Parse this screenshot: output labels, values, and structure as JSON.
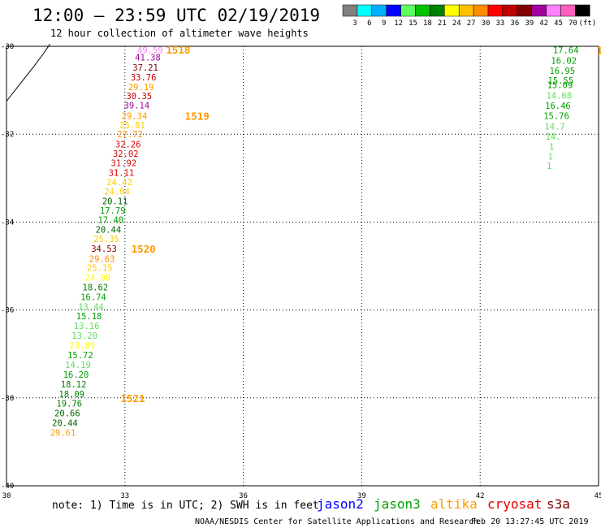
{
  "header": {
    "title": "12:00 — 23:59 UTC 02/19/2019",
    "subtitle": "12 hour collection of altimeter wave heights"
  },
  "colorbar": {
    "colors": [
      "#808080",
      "#00ffff",
      "#00b0ff",
      "#0000ff",
      "#60ff60",
      "#00c000",
      "#008000",
      "#ffff00",
      "#ffc000",
      "#ff8c00",
      "#ff0000",
      "#c00000",
      "#800000",
      "#a000a0",
      "#ff80ff",
      "#ff60c0",
      "#000000"
    ],
    "labels": [
      "3",
      "6",
      "9",
      "12",
      "15",
      "18",
      "21",
      "24",
      "27",
      "30",
      "33",
      "36",
      "39",
      "42",
      "45",
      "70",
      "(ft)"
    ]
  },
  "footer": {
    "note": "note: 1) Time is in UTC; 2) SWH is in feet",
    "satellites": [
      {
        "name": "jason2",
        "color": "#0000ff"
      },
      {
        "name": "jason3",
        "color": "#00a000"
      },
      {
        "name": "altika",
        "color": "#ff9900"
      },
      {
        "name": "cryosat",
        "color": "#e00000"
      },
      {
        "name": "s3a",
        "color": "#800000"
      }
    ],
    "credit": "NOAA/NESDIS Center for Satellite Applications and Research",
    "timestamp": "Feb 20 13:27:45 UTC 2019"
  },
  "chart_data": {
    "type": "scatter",
    "xlim": [
      30,
      45
    ],
    "ylim": [
      -40,
      -30
    ],
    "x_ticks": [
      "30",
      "33",
      "36",
      "39",
      "42",
      "45"
    ],
    "y_ticks": [
      "-30",
      "-32",
      "-34",
      "-36",
      "-38",
      "-40"
    ],
    "grid": true,
    "track": [
      {
        "lon": 33.64,
        "lat": -30.08,
        "swh": "49.59",
        "color": "#ff80ff"
      },
      {
        "lon": 33.58,
        "lat": -30.25,
        "swh": "41.38",
        "color": "#a000a0"
      },
      {
        "lon": 33.52,
        "lat": -30.48,
        "swh": "37.21",
        "color": "#800000"
      },
      {
        "lon": 33.47,
        "lat": -30.7,
        "swh": "33.76",
        "color": "#c00000"
      },
      {
        "lon": 33.41,
        "lat": -30.92,
        "swh": "29.19",
        "color": "#ff9900"
      },
      {
        "lon": 33.36,
        "lat": -31.13,
        "swh": "30.35",
        "color": "#c00000"
      },
      {
        "lon": 33.3,
        "lat": -31.34,
        "swh": "39.14",
        "color": "#a000a0"
      },
      {
        "lon": 33.24,
        "lat": -31.58,
        "swh": "29.34",
        "color": "#ff9900"
      },
      {
        "lon": 33.19,
        "lat": -31.79,
        "swh": "25.81",
        "color": "#ffcc00"
      },
      {
        "lon": 33.13,
        "lat": -32.0,
        "swh": "27.72",
        "color": "#ff8c00"
      },
      {
        "lon": 33.08,
        "lat": -32.23,
        "swh": "32.26",
        "color": "#e00000"
      },
      {
        "lon": 33.02,
        "lat": -32.44,
        "swh": "32.02",
        "color": "#e00000"
      },
      {
        "lon": 32.97,
        "lat": -32.65,
        "swh": "31.92",
        "color": "#e00000"
      },
      {
        "lon": 32.91,
        "lat": -32.87,
        "swh": "31.11",
        "color": "#e00000"
      },
      {
        "lon": 32.86,
        "lat": -33.09,
        "swh": "24.42",
        "color": "#ffcc00"
      },
      {
        "lon": 32.8,
        "lat": -33.3,
        "swh": "24.04",
        "color": "#ffcc00"
      },
      {
        "lon": 32.75,
        "lat": -33.52,
        "swh": "20.11",
        "color": "#006400"
      },
      {
        "lon": 32.69,
        "lat": -33.73,
        "swh": "17.79",
        "color": "#00a000"
      },
      {
        "lon": 32.64,
        "lat": -33.95,
        "swh": "17.40",
        "color": "#00a000"
      },
      {
        "lon": 32.58,
        "lat": -34.17,
        "swh": "20.44",
        "color": "#006400"
      },
      {
        "lon": 32.53,
        "lat": -34.38,
        "swh": "25.35",
        "color": "#ffcc00"
      },
      {
        "lon": 32.47,
        "lat": -34.6,
        "swh": "34.53",
        "color": "#800000"
      },
      {
        "lon": 32.42,
        "lat": -34.83,
        "swh": "29.63",
        "color": "#ff8c00"
      },
      {
        "lon": 32.36,
        "lat": -35.04,
        "swh": "25.15",
        "color": "#ffcc00"
      },
      {
        "lon": 32.31,
        "lat": -35.26,
        "swh": "24.00",
        "color": "#ffff00"
      },
      {
        "lon": 32.25,
        "lat": -35.48,
        "swh": "18.62",
        "color": "#008000"
      },
      {
        "lon": 32.2,
        "lat": -35.7,
        "swh": "16.74",
        "color": "#00a000"
      },
      {
        "lon": 32.14,
        "lat": -35.92,
        "swh": "13.44",
        "color": "#60e060"
      },
      {
        "lon": 32.09,
        "lat": -36.14,
        "swh": "15.18",
        "color": "#00a000"
      },
      {
        "lon": 32.03,
        "lat": -36.36,
        "swh": "13.16",
        "color": "#60e060"
      },
      {
        "lon": 31.98,
        "lat": -36.58,
        "swh": "13.20",
        "color": "#60e060"
      },
      {
        "lon": 31.92,
        "lat": -36.8,
        "swh": "23.89",
        "color": "#ffff00"
      },
      {
        "lon": 31.87,
        "lat": -37.02,
        "swh": "15.72",
        "color": "#00a000"
      },
      {
        "lon": 31.81,
        "lat": -37.25,
        "swh": "14.19",
        "color": "#60e060"
      },
      {
        "lon": 31.76,
        "lat": -37.47,
        "swh": "16.20",
        "color": "#00a000"
      },
      {
        "lon": 31.7,
        "lat": -37.69,
        "swh": "18.12",
        "color": "#008000"
      },
      {
        "lon": 31.65,
        "lat": -37.91,
        "swh": "18.09",
        "color": "#008000"
      },
      {
        "lon": 31.59,
        "lat": -38.12,
        "swh": "19.76",
        "color": "#008000"
      },
      {
        "lon": 31.54,
        "lat": -38.35,
        "swh": "20.66",
        "color": "#006400"
      },
      {
        "lon": 31.48,
        "lat": -38.57,
        "swh": "20.44",
        "color": "#006400"
      },
      {
        "lon": 31.43,
        "lat": -38.79,
        "swh": "29.61",
        "color": "#ff9900"
      }
    ],
    "pass_labels": [
      {
        "text": "1518",
        "lon": 34.35,
        "lat": -30.07,
        "color": "#ff9900"
      },
      {
        "text": "1519",
        "lon": 34.83,
        "lat": -31.58,
        "color": "#ff9900"
      },
      {
        "text": "1520",
        "lon": 33.47,
        "lat": -34.6,
        "color": "#ff9900"
      },
      {
        "text": "1521",
        "lon": 33.2,
        "lat": -38.0,
        "color": "#ff9900"
      }
    ],
    "edge_track": [
      {
        "lon": 44.17,
        "lat": -30.08,
        "swh": "17.64",
        "color": "#00a000"
      },
      {
        "lon": 44.12,
        "lat": -30.32,
        "swh": "16.02",
        "color": "#00a000"
      },
      {
        "lon": 44.08,
        "lat": -30.55,
        "swh": "16.95",
        "color": "#00a000"
      },
      {
        "lon": 44.04,
        "lat": -30.78,
        "swh": "15.55",
        "color": "#00a000"
      },
      {
        "lon": 44.02,
        "lat": -30.88,
        "swh": "15.09",
        "color": "#00a000"
      },
      {
        "lon": 44.0,
        "lat": -31.12,
        "swh": "14.68",
        "color": "#60e060"
      },
      {
        "lon": 43.97,
        "lat": -31.35,
        "swh": "16.46",
        "color": "#00a000"
      },
      {
        "lon": 43.93,
        "lat": -31.58,
        "swh": "15.76",
        "color": "#00a000"
      },
      {
        "lon": 43.89,
        "lat": -31.82,
        "swh": "14.7",
        "color": "#60e060"
      },
      {
        "lon": 43.85,
        "lat": -32.05,
        "swh": "14.",
        "color": "#60e060"
      },
      {
        "lon": 43.81,
        "lat": -32.28,
        "swh": "1",
        "color": "#60e060"
      },
      {
        "lon": 43.78,
        "lat": -32.5,
        "swh": "1",
        "color": "#60e060"
      },
      {
        "lon": 43.75,
        "lat": -32.72,
        "swh": "1",
        "color": "#60e060"
      }
    ],
    "edge_pass_labels": [
      {
        "text": "1",
        "lon": 45.03,
        "lat": -30.08,
        "color": "#ff9900"
      }
    ],
    "coast": [
      [
        30.0,
        -31.25
      ],
      [
        30.35,
        -30.85
      ],
      [
        30.7,
        -30.45
      ],
      [
        30.95,
        -30.15
      ],
      [
        31.1,
        -29.95
      ]
    ]
  }
}
